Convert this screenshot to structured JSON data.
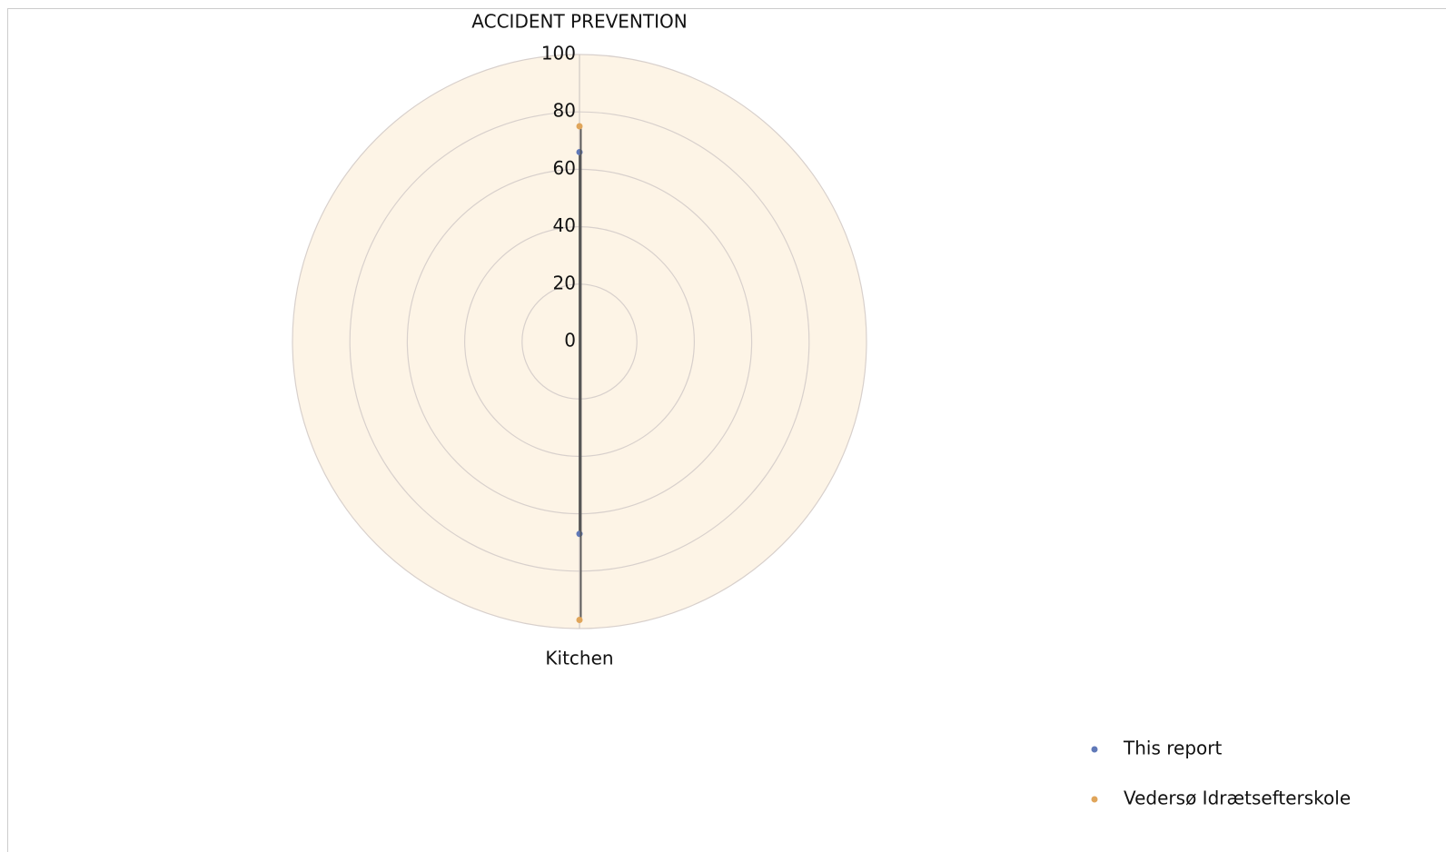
{
  "chart_data": {
    "type": "radar",
    "title": "ACCIDENT PREVENTION",
    "categories": [
      null,
      "Kitchen"
    ],
    "series": [
      {
        "name": "This report",
        "color": "#6079b8",
        "values": [
          66,
          67
        ]
      },
      {
        "name": "Vedersø Idrætsefterskole",
        "color": "#e0a55a",
        "values": [
          75,
          97
        ]
      }
    ],
    "ylim": [
      0,
      100
    ],
    "yticks": [
      0,
      20,
      40,
      60,
      80,
      100
    ],
    "grid": true,
    "legend": "lower right"
  }
}
